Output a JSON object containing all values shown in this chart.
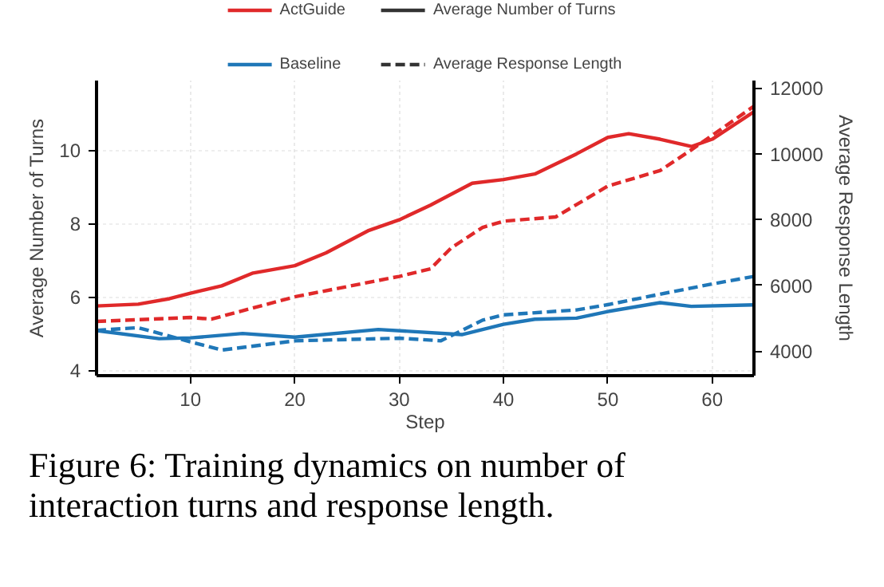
{
  "chart_data": {
    "type": "line",
    "xlabel": "Step",
    "ylabel": "Average Number of Turns",
    "y2label": "Average Response Length",
    "annotations": [
      "Figure 6: Training dynamics on number of\ninteraction turns and response length."
    ],
    "xlim": [
      1,
      64
    ],
    "xticks": [
      10,
      20,
      30,
      40,
      50,
      60
    ],
    "ylim": [
      3.85,
      11.9
    ],
    "yticks": [
      4,
      6,
      8,
      10
    ],
    "y2lim": [
      3250,
      12230
    ],
    "y2ticks": [
      4000,
      6000,
      8000,
      10000,
      12000
    ],
    "grid": true,
    "legend": "top",
    "series": [
      {
        "name": "ActGuide",
        "color": "#e0292a",
        "line_style": "solid",
        "x": [
          1,
          5,
          8,
          10,
          13,
          16,
          20,
          23,
          27,
          30,
          33,
          37,
          40,
          43,
          47,
          50,
          52,
          55,
          58,
          60,
          64
        ],
        "values": [
          5.75,
          5.8,
          5.95,
          6.1,
          6.3,
          6.65,
          6.85,
          7.2,
          7.8,
          8.1,
          8.5,
          9.1,
          9.2,
          9.35,
          9.9,
          10.35,
          10.45,
          10.3,
          10.1,
          10.3,
          11.05
        ]
      },
      {
        "name": "Baseline",
        "color": "#1f77b8",
        "line_style": "solid",
        "x": [
          1,
          7,
          10,
          15,
          20,
          28,
          36,
          40,
          43,
          47,
          50,
          55,
          58,
          64
        ],
        "values": [
          5.08,
          4.86,
          4.88,
          5.0,
          4.9,
          5.11,
          4.97,
          5.25,
          5.39,
          5.42,
          5.6,
          5.84,
          5.74,
          5.78
        ]
      },
      {
        "color": "#e0292a",
        "line_style": "dashed",
        "axis": "y2",
        "x": [
          1,
          10,
          12,
          20,
          30,
          33,
          35,
          38,
          40,
          45,
          50,
          55,
          58,
          64
        ],
        "values": [
          4900,
          5020,
          4970,
          5650,
          6270,
          6500,
          7140,
          7760,
          7950,
          8080,
          9020,
          9490,
          10120,
          11450
        ]
      },
      {
        "color": "#1f77b8",
        "line_style": "dashed",
        "axis": "y2",
        "x": [
          1,
          5,
          10,
          13,
          20,
          30,
          34,
          38,
          40,
          47,
          50,
          55,
          60,
          64
        ],
        "values": [
          4630,
          4710,
          4280,
          4030,
          4310,
          4390,
          4310,
          4940,
          5100,
          5250,
          5410,
          5730,
          6040,
          6270
        ]
      }
    ]
  }
}
